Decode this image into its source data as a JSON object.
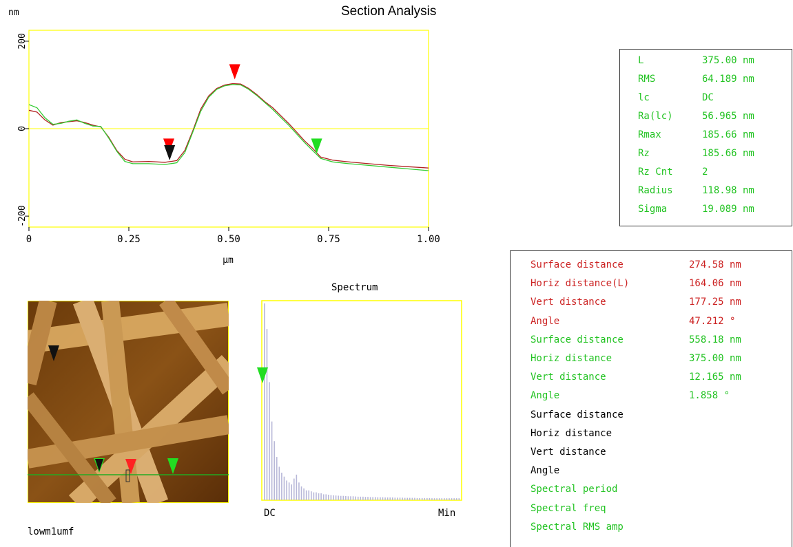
{
  "title": "Section Analysis",
  "section_chart": {
    "y_unit": "nm",
    "x_unit": "µm",
    "y_ticks": [
      "200",
      "0",
      "-200"
    ],
    "x_ticks": [
      "0",
      "0.25",
      "0.50",
      "0.75",
      "1.00"
    ],
    "xlim": [
      0,
      1.0
    ],
    "ylim": [
      -225,
      225
    ],
    "series": [
      {
        "color": "#b22222",
        "x": [
          0,
          0.02,
          0.04,
          0.06,
          0.08,
          0.1,
          0.12,
          0.14,
          0.16,
          0.18,
          0.2,
          0.22,
          0.24,
          0.26,
          0.3,
          0.34,
          0.37,
          0.39,
          0.41,
          0.43,
          0.45,
          0.47,
          0.49,
          0.51,
          0.53,
          0.55,
          0.57,
          0.59,
          0.61,
          0.63,
          0.65,
          0.67,
          0.69,
          0.71,
          0.73,
          0.76,
          0.8,
          0.85,
          0.9,
          0.95,
          1.0
        ],
        "y": [
          42,
          38,
          20,
          8,
          14,
          16,
          18,
          14,
          8,
          4,
          -20,
          -50,
          -70,
          -76,
          -75,
          -77,
          -73,
          -50,
          -5,
          45,
          75,
          92,
          100,
          103,
          102,
          92,
          78,
          62,
          48,
          30,
          12,
          -8,
          -28,
          -45,
          -65,
          -72,
          -76,
          -80,
          -84,
          -87,
          -90
        ]
      },
      {
        "color": "#33cc33",
        "x": [
          0,
          0.02,
          0.04,
          0.06,
          0.08,
          0.1,
          0.12,
          0.14,
          0.16,
          0.18,
          0.2,
          0.22,
          0.24,
          0.26,
          0.3,
          0.34,
          0.37,
          0.39,
          0.41,
          0.43,
          0.45,
          0.47,
          0.49,
          0.51,
          0.53,
          0.55,
          0.57,
          0.59,
          0.61,
          0.63,
          0.65,
          0.67,
          0.69,
          0.71,
          0.73,
          0.76,
          0.8,
          0.85,
          0.9,
          0.95,
          1.0
        ],
        "y": [
          55,
          48,
          25,
          10,
          12,
          17,
          20,
          12,
          6,
          5,
          -22,
          -52,
          -75,
          -80,
          -80,
          -82,
          -78,
          -55,
          -8,
          40,
          72,
          90,
          98,
          101,
          100,
          90,
          76,
          60,
          44,
          26,
          8,
          -12,
          -32,
          -50,
          -68,
          -76,
          -80,
          -84,
          -88,
          -92,
          -96
        ]
      }
    ],
    "markers": [
      {
        "color": "#ff0000",
        "x": 0.35,
        "y": -40
      },
      {
        "color": "#111111",
        "x": 0.352,
        "y": -55
      },
      {
        "color": "#ff0000",
        "x": 0.515,
        "y": 130
      },
      {
        "color": "#22dd22",
        "x": 0.72,
        "y": -40
      }
    ]
  },
  "stats": [
    {
      "label": "L",
      "value": "375.00 nm"
    },
    {
      "label": "RMS",
      "value": "64.189 nm"
    },
    {
      "label": "lc",
      "value": "DC"
    },
    {
      "label": "Ra(lc)",
      "value": "56.965 nm"
    },
    {
      "label": "Rmax",
      "value": "185.66 nm"
    },
    {
      "label": "Rz",
      "value": "185.66 nm"
    },
    {
      "label": "Rz Cnt",
      "value": "2"
    },
    {
      "label": "Radius",
      "value": "118.98 nm"
    },
    {
      "label": "Sigma",
      "value": "19.089 nm"
    }
  ],
  "measurements": [
    {
      "label": "Surface distance",
      "value": "274.58 nm",
      "color": "red"
    },
    {
      "label": "Horiz distance(L)",
      "value": "164.06 nm",
      "color": "red"
    },
    {
      "label": "Vert distance",
      "value": "177.25 nm",
      "color": "red"
    },
    {
      "label": "Angle",
      "value": "47.212 °",
      "color": "red"
    },
    {
      "label": "Surface distance",
      "value": "558.18 nm",
      "color": "green"
    },
    {
      "label": "Horiz distance",
      "value": "375.00 nm",
      "color": "green"
    },
    {
      "label": "Vert distance",
      "value": "12.165 nm",
      "color": "green"
    },
    {
      "label": "Angle",
      "value": "1.858 °",
      "color": "green"
    },
    {
      "label": "Surface distance",
      "value": "",
      "color": "black"
    },
    {
      "label": "Horiz distance",
      "value": "",
      "color": "black"
    },
    {
      "label": "Vert distance",
      "value": "",
      "color": "black"
    },
    {
      "label": "Angle",
      "value": "",
      "color": "black"
    },
    {
      "label": "Spectral period",
      "value": "",
      "color": "green"
    },
    {
      "label": "Spectral freq",
      "value": "",
      "color": "green"
    },
    {
      "label": "Spectral RMS amp",
      "value": "",
      "color": "green"
    }
  ],
  "spectrum": {
    "title": "Spectrum",
    "x_left_label": "DC",
    "x_right_label": "Min",
    "bars": [
      1.0,
      0.87,
      0.6,
      0.4,
      0.3,
      0.22,
      0.17,
      0.14,
      0.12,
      0.1,
      0.09,
      0.08,
      0.11,
      0.13,
      0.09,
      0.07,
      0.06,
      0.05,
      0.05,
      0.045,
      0.04,
      0.04,
      0.035,
      0.035,
      0.03,
      0.03,
      0.028,
      0.026,
      0.025,
      0.024,
      0.023,
      0.022,
      0.022,
      0.021,
      0.02,
      0.02,
      0.02,
      0.019,
      0.018,
      0.018,
      0.018,
      0.017,
      0.017,
      0.016,
      0.016,
      0.016,
      0.015,
      0.015,
      0.015,
      0.014,
      0.014,
      0.014,
      0.014,
      0.013,
      0.013,
      0.013,
      0.013,
      0.012,
      0.012,
      0.012,
      0.012,
      0.012,
      0.011,
      0.011,
      0.011,
      0.011,
      0.011,
      0.011,
      0.01,
      0.01,
      0.01,
      0.01,
      0.01,
      0.01,
      0.01,
      0.01,
      0.01,
      0.01,
      0.01,
      0.01
    ]
  },
  "image_label": "lowm1umf",
  "colors": {
    "axis_frame": "#ffff00",
    "zero_line": "#ffff00"
  }
}
